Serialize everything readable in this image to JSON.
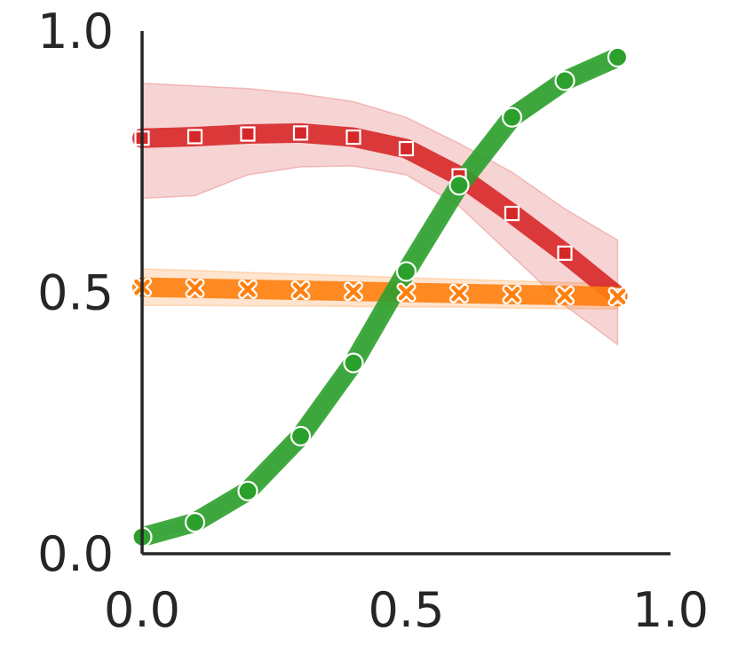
{
  "chart_data": {
    "type": "line",
    "title": "",
    "xlabel": "",
    "ylabel": "",
    "xlim": [
      0.0,
      1.0
    ],
    "ylim": [
      0.0,
      1.0
    ],
    "x_ticks": [
      {
        "value": 0.0,
        "label": "0.0"
      },
      {
        "value": 0.5,
        "label": "0.5"
      },
      {
        "value": 1.0,
        "label": "1.0"
      }
    ],
    "y_ticks": [
      {
        "value": 0.0,
        "label": "0.0"
      },
      {
        "value": 0.5,
        "label": "0.5"
      },
      {
        "value": 1.0,
        "label": "1.0"
      }
    ],
    "grid": false,
    "legend": "none",
    "series": [
      {
        "key": "red",
        "color": "#d62728",
        "marker": "square",
        "x": [
          0.0,
          0.1,
          0.2,
          0.3,
          0.4,
          0.5,
          0.6,
          0.7,
          0.8,
          0.9
        ],
        "y": [
          0.795,
          0.798,
          0.803,
          0.805,
          0.797,
          0.775,
          0.723,
          0.651,
          0.575,
          0.493
        ],
        "lower": [
          0.68,
          0.685,
          0.725,
          0.74,
          0.742,
          0.725,
          0.665,
          0.57,
          0.475,
          0.4
        ],
        "upper": [
          0.9,
          0.895,
          0.89,
          0.88,
          0.865,
          0.835,
          0.785,
          0.73,
          0.66,
          0.6
        ]
      },
      {
        "key": "orange",
        "color": "#ff7f0e",
        "marker": "x",
        "x": [
          0.0,
          0.1,
          0.2,
          0.3,
          0.4,
          0.5,
          0.6,
          0.7,
          0.8,
          0.9
        ],
        "y": [
          0.51,
          0.508,
          0.506,
          0.504,
          0.502,
          0.5,
          0.498,
          0.496,
          0.494,
          0.492
        ],
        "lower": [
          0.475,
          0.475,
          0.474,
          0.474,
          0.473,
          0.472,
          0.472,
          0.47,
          0.469,
          0.468
        ],
        "upper": [
          0.545,
          0.542,
          0.538,
          0.535,
          0.532,
          0.528,
          0.525,
          0.522,
          0.519,
          0.516
        ]
      },
      {
        "key": "green",
        "color": "#2ca02c",
        "marker": "circle",
        "x": [
          0.0,
          0.1,
          0.2,
          0.3,
          0.4,
          0.5,
          0.6,
          0.7,
          0.8,
          0.9
        ],
        "y": [
          0.032,
          0.06,
          0.12,
          0.225,
          0.365,
          0.54,
          0.705,
          0.835,
          0.905,
          0.95
        ],
        "lower": [
          0.025,
          0.05,
          0.105,
          0.205,
          0.345,
          0.52,
          0.685,
          0.815,
          0.89,
          0.94
        ],
        "upper": [
          0.04,
          0.07,
          0.135,
          0.245,
          0.385,
          0.56,
          0.725,
          0.855,
          0.92,
          0.96
        ]
      }
    ]
  }
}
